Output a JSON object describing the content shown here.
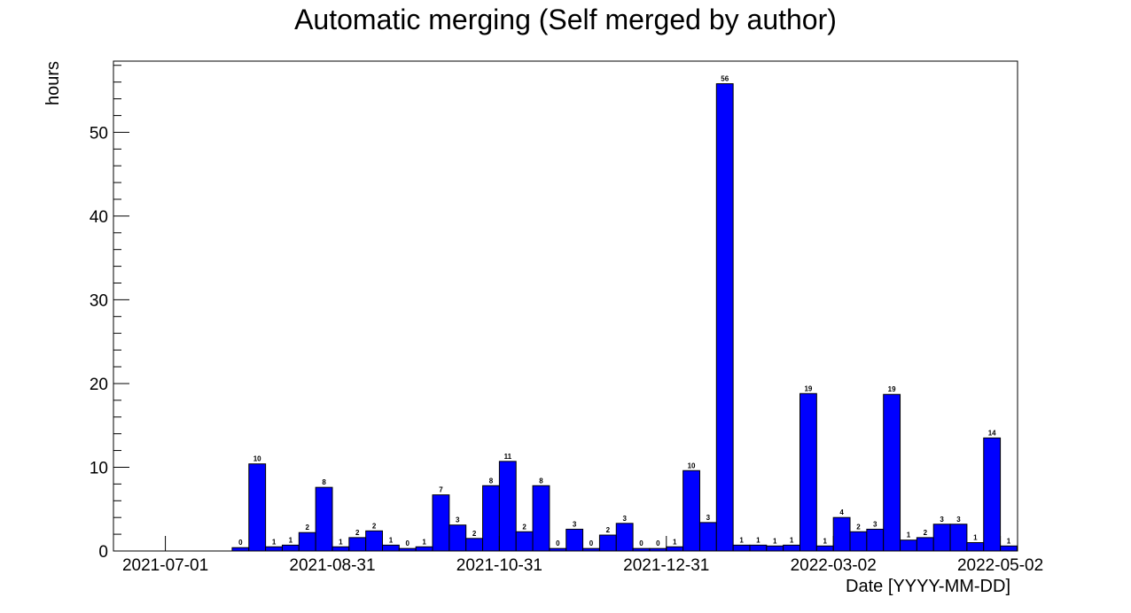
{
  "chart_data": {
    "type": "bar",
    "title": "Automatic merging (Self merged by author)",
    "xlabel": "Date [YYYY-MM-DD]",
    "ylabel": "hours",
    "ylim": [
      0,
      58.5
    ],
    "yticks": [
      0,
      10,
      20,
      30,
      40,
      50
    ],
    "xtick_labels": [
      "2021-07-01",
      "2021-08-31",
      "2021-10-31",
      "2021-12-31",
      "2022-03-02",
      "2022-05-02"
    ],
    "grid": false,
    "legend": "none",
    "bar_color": "#0000ff",
    "values": [
      0,
      0,
      0,
      0,
      0.4,
      10.4,
      0.5,
      0.7,
      2.2,
      7.6,
      0.5,
      1.6,
      2.4,
      0.7,
      0.3,
      0.5,
      6.7,
      3.1,
      1.5,
      7.8,
      10.7,
      2.3,
      7.8,
      0.3,
      2.6,
      0.3,
      1.9,
      3.3,
      0.3,
      0.3,
      0.5,
      9.6,
      3.4,
      55.8,
      0.7,
      0.7,
      0.6,
      0.7,
      18.8,
      0.6,
      4.0,
      2.3,
      2.6,
      18.7,
      1.3,
      1.6,
      3.2,
      3.2,
      1.0,
      13.5,
      0.6
    ],
    "data_labels": [
      "",
      "",
      "",
      "",
      "0",
      "10",
      "1",
      "1",
      "2",
      "8",
      "1",
      "2",
      "2",
      "1",
      "0",
      "1",
      "7",
      "3",
      "2",
      "8",
      "11",
      "2",
      "8",
      "0",
      "3",
      "0",
      "2",
      "3",
      "0",
      "0",
      "1",
      "10",
      "3",
      "56",
      "1",
      "1",
      "1",
      "1",
      "19",
      "1",
      "4",
      "2",
      "3",
      "19",
      "1",
      "2",
      "3",
      "3",
      "1",
      "14",
      "1"
    ]
  }
}
